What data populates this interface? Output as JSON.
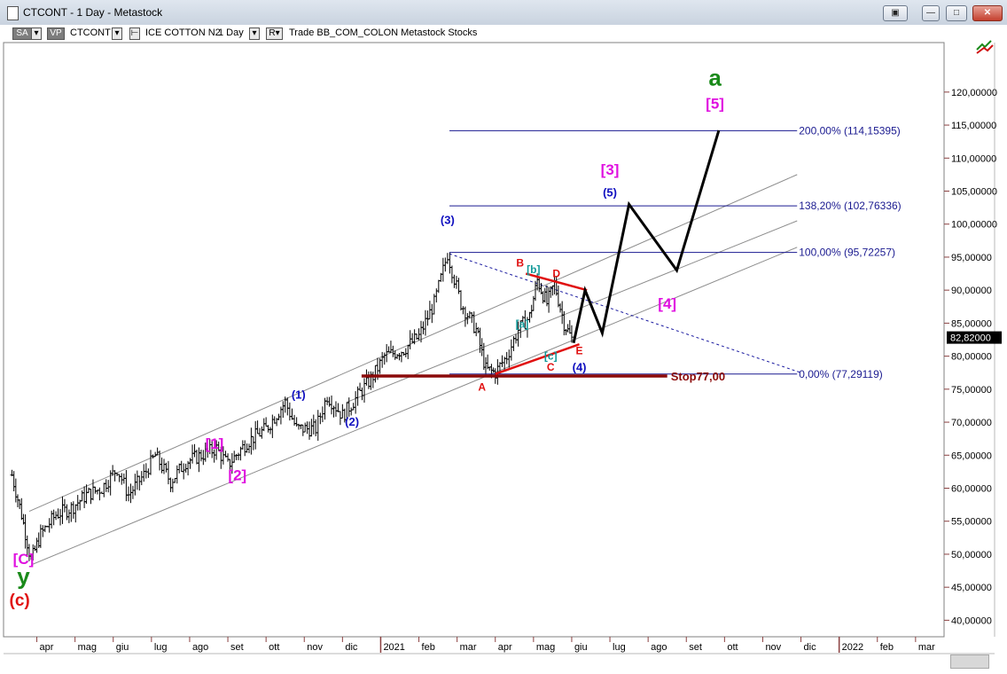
{
  "window": {
    "title": "CTCONT - 1 Day - Metastock",
    "buttons": [
      "restore-icon",
      "minimize-icon",
      "maximize-icon",
      "close-icon"
    ]
  },
  "toolbar": {
    "sa_label": "SA",
    "vp_label": "VP",
    "symbol": "CTCONT",
    "name": "ICE COTTON N2",
    "period": "1 Day",
    "r_label": "R",
    "tail": "Trade  BB_COM_COLON  Metastock  Stocks"
  },
  "chart_data": {
    "type": "ohlc",
    "symbol": "CTCONT",
    "ylim": [
      37.5,
      127.5
    ],
    "yticks": [
      40,
      45,
      50,
      55,
      60,
      65,
      70,
      75,
      80,
      85,
      90,
      95,
      100,
      105,
      110,
      115,
      120
    ],
    "ytick_labels": [
      "40,00000",
      "45,00000",
      "50,00000",
      "55,00000",
      "60,00000",
      "65,00000",
      "70,00000",
      "75,00000",
      "80,00000",
      "85,00000",
      "90,00000",
      "95,00000",
      "100,00000",
      "105,00000",
      "110,00000",
      "115,00000",
      "120,00000"
    ],
    "current_price": "82,82000",
    "xticks": [
      {
        "label": "apr",
        "t": 0.5
      },
      {
        "label": "mag",
        "t": 1.5
      },
      {
        "label": "giu",
        "t": 2.5
      },
      {
        "label": "lug",
        "t": 3.5
      },
      {
        "label": "ago",
        "t": 4.5
      },
      {
        "label": "set",
        "t": 5.5
      },
      {
        "label": "ott",
        "t": 6.5
      },
      {
        "label": "nov",
        "t": 7.5
      },
      {
        "label": "dic",
        "t": 8.5
      },
      {
        "label": "2021",
        "t": 9.5
      },
      {
        "label": "feb",
        "t": 10.5
      },
      {
        "label": "mar",
        "t": 11.5
      },
      {
        "label": "apr",
        "t": 12.5
      },
      {
        "label": "mag",
        "t": 13.5
      },
      {
        "label": "giu",
        "t": 14.5
      },
      {
        "label": "lug",
        "t": 15.5
      },
      {
        "label": "ago",
        "t": 16.5
      },
      {
        "label": "set",
        "t": 17.5
      },
      {
        "label": "ott",
        "t": 18.5
      },
      {
        "label": "nov",
        "t": 19.5
      },
      {
        "label": "dic",
        "t": 20.5
      },
      {
        "label": "2022",
        "t": 21.5
      },
      {
        "label": "feb",
        "t": 22.5
      },
      {
        "label": "mar",
        "t": 23.5
      }
    ],
    "price_path": [
      [
        -0.15,
        62
      ],
      [
        0.1,
        56
      ],
      [
        0.35,
        49
      ],
      [
        0.6,
        53
      ],
      [
        1.0,
        56
      ],
      [
        1.4,
        57
      ],
      [
        1.8,
        59
      ],
      [
        2.2,
        60
      ],
      [
        2.6,
        63
      ],
      [
        2.9,
        59
      ],
      [
        3.3,
        62
      ],
      [
        3.6,
        65
      ],
      [
        4.0,
        61
      ],
      [
        4.4,
        64
      ],
      [
        4.8,
        65
      ],
      [
        5.2,
        66
      ],
      [
        5.5,
        63.5
      ],
      [
        6.0,
        67
      ],
      [
        6.5,
        69
      ],
      [
        7.0,
        73
      ],
      [
        7.3,
        69
      ],
      [
        7.8,
        69
      ],
      [
        8.1,
        74
      ],
      [
        8.5,
        71
      ],
      [
        8.9,
        74
      ],
      [
        9.3,
        77
      ],
      [
        9.6,
        80
      ],
      [
        10.1,
        81
      ],
      [
        10.5,
        83
      ],
      [
        10.9,
        88
      ],
      [
        11.25,
        95.5
      ],
      [
        11.6,
        88
      ],
      [
        12.0,
        84
      ],
      [
        12.25,
        78
      ],
      [
        12.5,
        77.5
      ],
      [
        12.8,
        80
      ],
      [
        13.1,
        84
      ],
      [
        13.4,
        86
      ],
      [
        13.6,
        91.5
      ],
      [
        13.85,
        88
      ],
      [
        14.05,
        91
      ],
      [
        14.3,
        85
      ],
      [
        14.55,
        82
      ]
    ],
    "forecast_path": [
      [
        14.55,
        82
      ],
      [
        14.85,
        90
      ],
      [
        15.3,
        83.5
      ],
      [
        16.0,
        103
      ],
      [
        17.25,
        93
      ],
      [
        18.35,
        114.2
      ]
    ],
    "fib_levels": [
      {
        "label": "200,00% (114,15395)",
        "value": 114.15395
      },
      {
        "label": "138,20% (102,76336)",
        "value": 102.76336
      },
      {
        "label": "100,00% (95,72257)",
        "value": 95.72257
      },
      {
        "label": "0,00% (77,29119)",
        "value": 77.29119
      }
    ],
    "channel_lines": [
      {
        "from": [
          0.3,
          56.5
        ],
        "to": [
          20.4,
          107.5
        ]
      },
      {
        "from": [
          0.4,
          48.5
        ],
        "to": [
          20.4,
          96.5
        ]
      },
      {
        "from": [
          8.6,
          73
        ],
        "to": [
          20.4,
          100.5
        ]
      }
    ],
    "triangle_lines": [
      {
        "from": [
          13.3,
          92.5
        ],
        "to": [
          14.9,
          90
        ],
        "color": "#e01010"
      },
      {
        "from": [
          12.5,
          77.3
        ],
        "to": [
          14.7,
          81.8
        ],
        "color": "#e01010"
      }
    ],
    "dashed_line": {
      "from": [
        11.3,
        95.5
      ],
      "to": [
        20.5,
        77.5
      ]
    },
    "stop_line": {
      "value": 77.0,
      "from": 9.0,
      "to": 17.0,
      "label": "Stop77,00"
    },
    "wave_labels": [
      {
        "text": "a",
        "t": 18.25,
        "v": 121,
        "color": "#1a8a1a",
        "size": 26
      },
      {
        "text": "[5]",
        "t": 18.25,
        "v": 117.5,
        "color": "#e010e0",
        "size": 17
      },
      {
        "text": "[3]",
        "t": 15.5,
        "v": 107.5,
        "color": "#e010e0",
        "size": 17
      },
      {
        "text": "(5)",
        "t": 15.5,
        "v": 104.2,
        "color": "#1010c0",
        "size": 13
      },
      {
        "text": "(3)",
        "t": 11.25,
        "v": 100.0,
        "color": "#1010c0",
        "size": 13
      },
      {
        "text": "B",
        "t": 13.15,
        "v": 93.6,
        "color": "#e01010",
        "size": 12
      },
      {
        "text": "[b]",
        "t": 13.5,
        "v": 92.6,
        "color": "#119999",
        "size": 12
      },
      {
        "text": "D",
        "t": 14.1,
        "v": 92.0,
        "color": "#e01010",
        "size": 12
      },
      {
        "text": "[4]",
        "t": 17.0,
        "v": 87.2,
        "color": "#e010e0",
        "size": 17
      },
      {
        "text": "[a]",
        "t": 13.2,
        "v": 84.3,
        "color": "#119999",
        "size": 12
      },
      {
        "text": "E",
        "t": 14.7,
        "v": 80.3,
        "color": "#e01010",
        "size": 12
      },
      {
        "text": "[c]",
        "t": 13.95,
        "v": 79.5,
        "color": "#119999",
        "size": 12
      },
      {
        "text": "C",
        "t": 13.95,
        "v": 77.8,
        "color": "#e01010",
        "size": 12
      },
      {
        "text": "(4)",
        "t": 14.7,
        "v": 77.7,
        "color": "#1010c0",
        "size": 13
      },
      {
        "text": "A",
        "t": 12.15,
        "v": 74.8,
        "color": "#e01010",
        "size": 12
      },
      {
        "text": "(1)",
        "t": 7.35,
        "v": 73.6,
        "color": "#1010c0",
        "size": 13
      },
      {
        "text": "(2)",
        "t": 8.75,
        "v": 69.5,
        "color": "#1010c0",
        "size": 13
      },
      {
        "text": "[1]",
        "t": 5.15,
        "v": 66.0,
        "color": "#e010e0",
        "size": 17
      },
      {
        "text": "[2]",
        "t": 5.75,
        "v": 61.2,
        "color": "#e010e0",
        "size": 17
      },
      {
        "text": "[C]",
        "t": 0.15,
        "v": 48.5,
        "color": "#e010e0",
        "size": 17
      },
      {
        "text": "y",
        "t": 0.15,
        "v": 45.5,
        "color": "#1a8a1a",
        "size": 26
      },
      {
        "text": "(c)",
        "t": 0.05,
        "v": 42.2,
        "color": "#e01010",
        "size": 19
      }
    ]
  }
}
